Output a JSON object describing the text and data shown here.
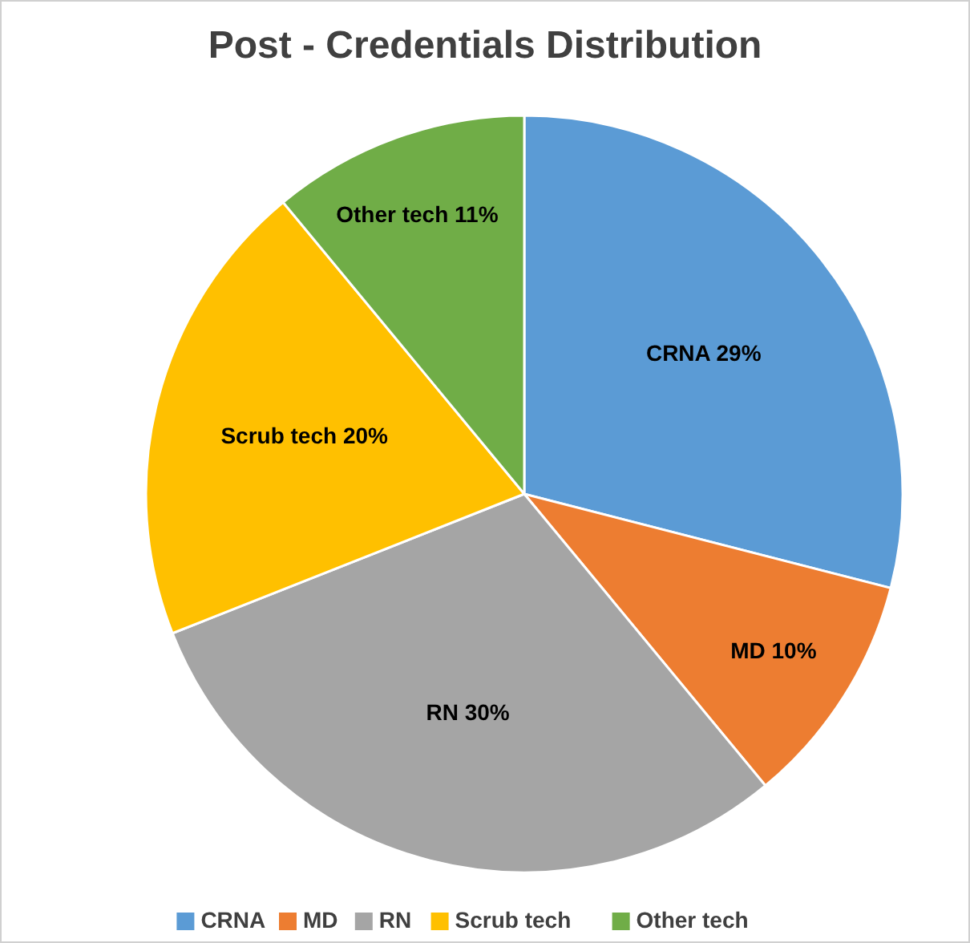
{
  "chart_data": {
    "type": "pie",
    "title": "Post - Credentials Distribution",
    "categories": [
      "CRNA",
      "MD",
      "RN",
      "Scrub tech",
      "Other tech"
    ],
    "values": [
      29,
      10,
      30,
      20,
      11
    ],
    "colors": [
      "#5b9bd5",
      "#ed7d31",
      "#a5a5a5",
      "#ffc000",
      "#70ad47"
    ],
    "value_labels": [
      "CRNA 29%",
      "MD 10%",
      "RN 30%",
      "Scrub tech 20%",
      "Other tech 11%"
    ],
    "legend": "bottom"
  }
}
